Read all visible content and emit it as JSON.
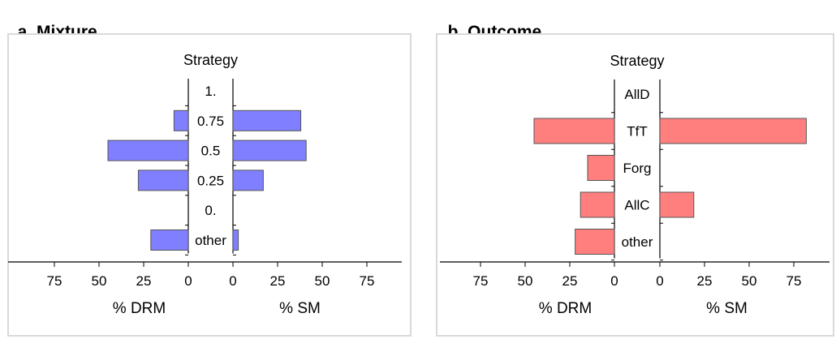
{
  "panels": {
    "a": {
      "letter": "a",
      "title": "Mixture"
    },
    "b": {
      "letter": "b",
      "title": "Outcome"
    }
  },
  "chart_data": [
    {
      "type": "bar",
      "orientation": "horizontal-butterfly",
      "title": "Mixture",
      "category_label": "Strategy",
      "categories": [
        "1.",
        "0.75",
        "0.5",
        "0.25",
        "0.",
        "other"
      ],
      "series": [
        {
          "name": "% DRM",
          "values": [
            0,
            8,
            45,
            28,
            0,
            21
          ]
        },
        {
          "name": "% SM",
          "values": [
            0,
            38,
            41,
            17,
            0,
            3
          ]
        }
      ],
      "xlabel_left": "% DRM",
      "xlabel_right": "% SM",
      "ticks": [
        0,
        25,
        50,
        75
      ],
      "xlim": [
        0,
        95
      ],
      "color": "#7f7fff",
      "grid": false
    },
    {
      "type": "bar",
      "orientation": "horizontal-butterfly",
      "title": "Outcome",
      "category_label": "Strategy",
      "categories": [
        "AllD",
        "TfT",
        "Forg",
        "AllC",
        "other"
      ],
      "series": [
        {
          "name": "% DRM",
          "values": [
            0,
            45,
            15,
            19,
            22
          ]
        },
        {
          "name": "% SM",
          "values": [
            0,
            82,
            0,
            19,
            0
          ]
        }
      ],
      "xlabel_left": "% DRM",
      "xlabel_right": "% SM",
      "ticks": [
        0,
        25,
        50,
        75
      ],
      "xlim": [
        0,
        95
      ],
      "color": "#ff7f7f",
      "grid": false
    }
  ]
}
